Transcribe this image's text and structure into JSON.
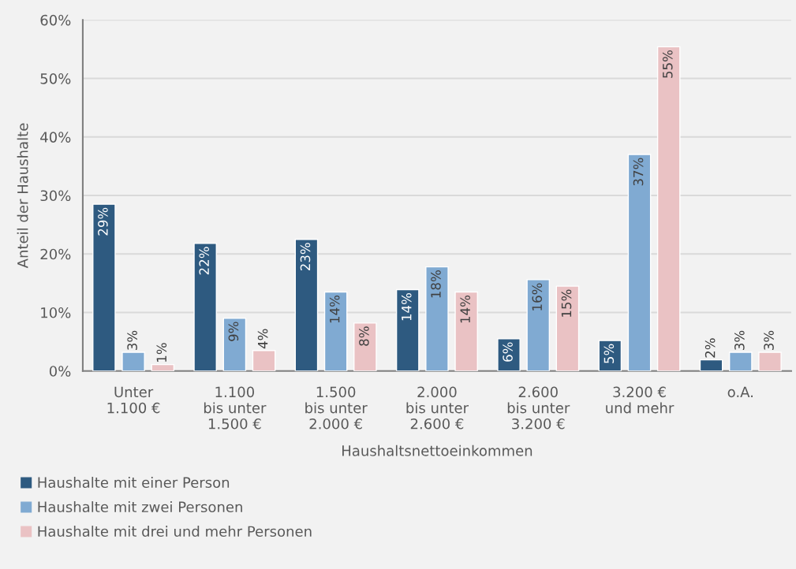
{
  "chart_data": {
    "type": "bar",
    "xlabel": "Haushaltsnettoeinkommen",
    "ylabel": "Anteil der Haushalte",
    "categories": [
      "Unter\n1.100 €",
      "1.100\nbis unter\n1.500 €",
      "1.500\nbis unter\n2.000 €",
      "2.000\nbis unter\n2.600 €",
      "2.600\nbis unter\n3.200 €",
      "3.200 €\nund mehr",
      "o.A."
    ],
    "series": [
      {
        "name": "Haushalte mit einer Person",
        "color": "#2e5a80",
        "values": [
          28.5,
          21.8,
          22.5,
          13.9,
          5.5,
          5.2,
          1.9
        ],
        "value_labels": [
          "29%",
          "22%",
          "23%",
          "14%",
          "6%",
          "5%",
          "2%"
        ]
      },
      {
        "name": "Haushalte mit zwei Personen",
        "color": "#80aad2",
        "values": [
          3.2,
          9.0,
          13.5,
          17.8,
          15.6,
          37.0,
          3.2
        ],
        "value_labels": [
          "3%",
          "9%",
          "14%",
          "18%",
          "16%",
          "37%",
          "3%"
        ]
      },
      {
        "name": "Haushalte mit drei und mehr Personen",
        "color": "#eac2c4",
        "values": [
          1.1,
          3.5,
          8.2,
          13.5,
          14.5,
          55.4,
          3.2
        ],
        "value_labels": [
          "1%",
          "4%",
          "8%",
          "14%",
          "15%",
          "55%",
          "3%"
        ]
      }
    ],
    "ylim": [
      0,
      60
    ],
    "yticks": [
      {
        "value": 0,
        "label": "0%"
      },
      {
        "value": 10,
        "label": "10%"
      },
      {
        "value": 20,
        "label": "20%"
      },
      {
        "value": 30,
        "label": "30%"
      },
      {
        "value": 40,
        "label": "40%"
      },
      {
        "value": 50,
        "label": "50%"
      },
      {
        "value": 60,
        "label": "60%"
      }
    ],
    "grid": "y",
    "legend": "bottom left"
  }
}
